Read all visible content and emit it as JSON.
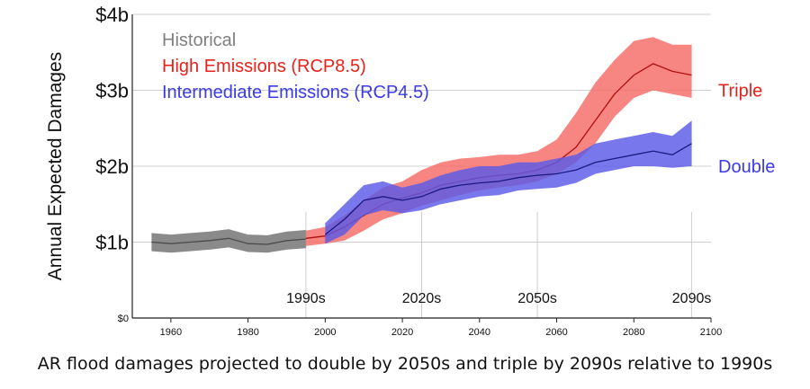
{
  "caption": "AR flood damages projected to double by 2050s and triple by 2090s relative to 1990s",
  "chart_data": {
    "type": "area",
    "ylabel": "Annual Expected Damages",
    "xlim": [
      1950,
      2100
    ],
    "ylim": [
      0,
      4
    ],
    "x_ticks": [
      1960,
      1980,
      2000,
      2020,
      2040,
      2060,
      2080,
      2100
    ],
    "y_ticks": [
      {
        "value": 0,
        "label": "$0"
      },
      {
        "value": 1,
        "label": "$1b"
      },
      {
        "value": 2,
        "label": "$2b"
      },
      {
        "value": 3,
        "label": "$3b"
      },
      {
        "value": 4,
        "label": "$4b"
      }
    ],
    "decade_labels": [
      {
        "year": 1995,
        "label": "1990s"
      },
      {
        "year": 2025,
        "label": "2020s"
      },
      {
        "year": 2055,
        "label": "2050s"
      },
      {
        "year": 2095,
        "label": "2090s"
      }
    ],
    "legend": [
      {
        "name": "Historical",
        "color": "#808080"
      },
      {
        "name": "High Emissions (RCP8.5)",
        "color": "#e8221a"
      },
      {
        "name": "Intermediate Emissions (RCP4.5)",
        "color": "#3a3ae8"
      }
    ],
    "right_labels": [
      {
        "text": "Triple",
        "value": 3.0,
        "color": "#e8221a"
      },
      {
        "text": "Double",
        "value": 2.0,
        "color": "#3a3ae8"
      }
    ],
    "colors": {
      "historical_band": "#8a8a8a",
      "historical_line": "#4a4a4a",
      "high_band": "#f56a66",
      "high_line": "#b01010",
      "inter_band": "#5a5ae8",
      "inter_line": "#1a1a80",
      "grid": "#cfcfcf"
    },
    "series": [
      {
        "name": "Historical",
        "x": [
          1955,
          1960,
          1965,
          1970,
          1975,
          1980,
          1985,
          1990,
          1995
        ],
        "mean": [
          1.0,
          0.98,
          1.0,
          1.02,
          1.05,
          0.98,
          0.97,
          1.02,
          1.04
        ],
        "lower": [
          0.88,
          0.86,
          0.88,
          0.9,
          0.93,
          0.87,
          0.86,
          0.9,
          0.92
        ],
        "upper": [
          1.12,
          1.1,
          1.12,
          1.14,
          1.17,
          1.1,
          1.09,
          1.14,
          1.16
        ]
      },
      {
        "name": "High Emissions (RCP8.5)",
        "x": [
          1995,
          2000,
          2005,
          2010,
          2015,
          2020,
          2025,
          2030,
          2035,
          2040,
          2045,
          2050,
          2055,
          2060,
          2065,
          2070,
          2075,
          2080,
          2085,
          2090,
          2095
        ],
        "mean": [
          1.05,
          1.08,
          1.2,
          1.35,
          1.5,
          1.58,
          1.65,
          1.75,
          1.8,
          1.85,
          1.88,
          1.9,
          1.95,
          2.05,
          2.25,
          2.6,
          2.95,
          3.2,
          3.35,
          3.25,
          3.2
        ],
        "lower": [
          0.95,
          0.98,
          1.02,
          1.15,
          1.3,
          1.38,
          1.48,
          1.55,
          1.62,
          1.68,
          1.72,
          1.75,
          1.8,
          1.9,
          2.05,
          2.3,
          2.65,
          2.9,
          3.0,
          2.95,
          2.9
        ],
        "upper": [
          1.15,
          1.2,
          1.35,
          1.55,
          1.72,
          1.8,
          1.95,
          2.05,
          2.1,
          2.12,
          2.15,
          2.15,
          2.2,
          2.35,
          2.7,
          3.1,
          3.4,
          3.65,
          3.7,
          3.6,
          3.6
        ]
      },
      {
        "name": "Intermediate Emissions (RCP4.5)",
        "x": [
          2000,
          2005,
          2010,
          2015,
          2020,
          2025,
          2030,
          2035,
          2040,
          2045,
          2050,
          2055,
          2060,
          2065,
          2070,
          2075,
          2080,
          2085,
          2090,
          2095
        ],
        "mean": [
          1.1,
          1.3,
          1.55,
          1.6,
          1.55,
          1.6,
          1.7,
          1.75,
          1.78,
          1.8,
          1.85,
          1.88,
          1.9,
          1.95,
          2.05,
          2.1,
          2.15,
          2.2,
          2.15,
          2.3
        ],
        "lower": [
          0.98,
          1.1,
          1.35,
          1.42,
          1.38,
          1.42,
          1.5,
          1.55,
          1.6,
          1.62,
          1.68,
          1.7,
          1.72,
          1.78,
          1.9,
          1.95,
          2.0,
          2.0,
          1.98,
          2.0
        ],
        "upper": [
          1.25,
          1.5,
          1.75,
          1.8,
          1.72,
          1.78,
          1.88,
          1.95,
          2.0,
          2.0,
          2.05,
          2.05,
          2.1,
          2.15,
          2.3,
          2.35,
          2.4,
          2.45,
          2.4,
          2.6
        ]
      }
    ]
  }
}
